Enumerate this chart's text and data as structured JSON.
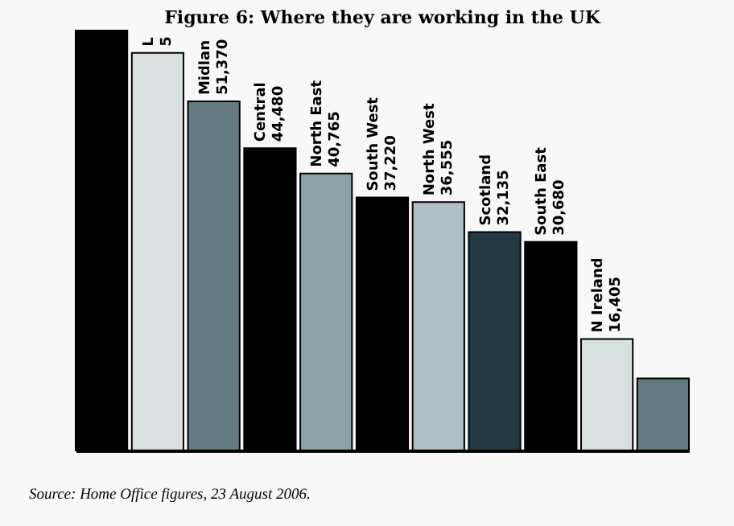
{
  "chart_data": {
    "type": "bar",
    "title": "Figure 6: Where they are working in the UK",
    "categories": [
      null,
      "L",
      "Midlan",
      "Central",
      "North East",
      "South West",
      "North West",
      "Scotland",
      "South East",
      "N Ireland",
      null
    ],
    "values": [
      61800,
      58500,
      51370,
      44480,
      40765,
      37220,
      36555,
      32135,
      30680,
      16405,
      10600
    ],
    "value_labels": [
      null,
      null,
      "51,370",
      "44,480",
      "40,765",
      "37,220",
      "36,555",
      "32,135",
      "30,680",
      "16,405",
      null
    ],
    "colors": [
      "#000000",
      "#d8e0df",
      "#637a80",
      "#000000",
      "#8ca3a8",
      "#000000",
      "#b0bfc6",
      "#243a42",
      "#000000",
      "#d8e0df",
      "#637a80"
    ],
    "annotations": [
      "5",
      "Source: Home Office figures, 23 August 2006."
    ]
  }
}
